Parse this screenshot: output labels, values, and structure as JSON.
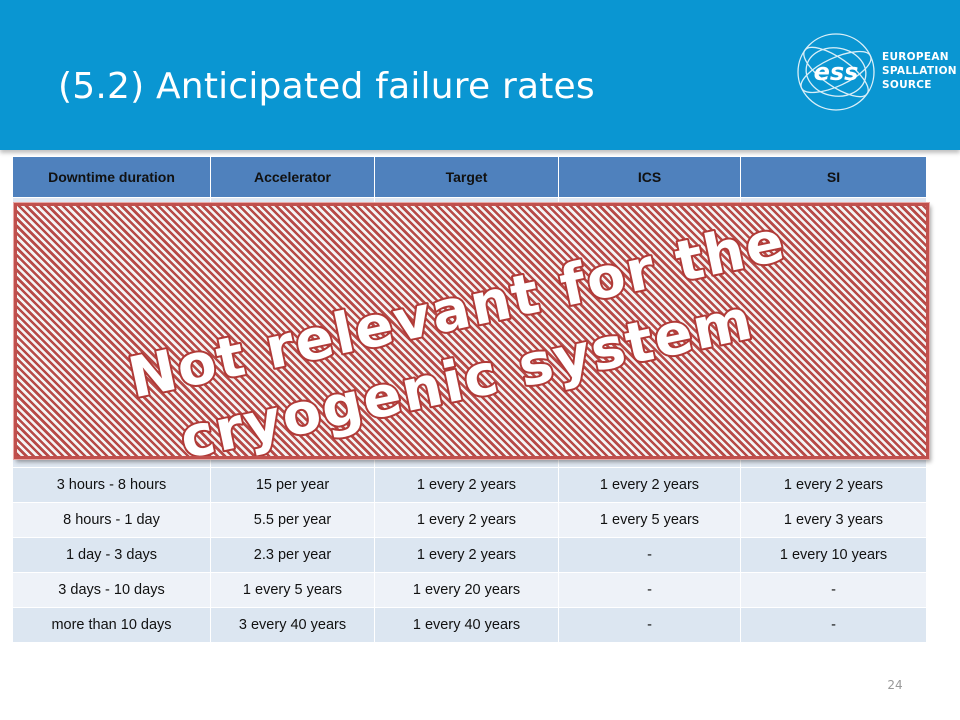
{
  "slide": {
    "title": "(5.2) Anticipated failure rates",
    "page_number": "24"
  },
  "logo": {
    "mark": "ess",
    "lines": [
      "EUROPEAN",
      "SPALLATION",
      "SOURCE"
    ]
  },
  "overlay": {
    "line1": "Not relevant for the",
    "line2": "cryogenic system",
    "stripe_color": "#b74a47",
    "text_color": "#ffffff",
    "outline_color": "#b03a37"
  },
  "table": {
    "headers": [
      "Downtime duration",
      "Accelerator",
      "Target",
      "ICS",
      "SI"
    ],
    "rows": [
      [
        "3 hours - 8 hours",
        "15 per year",
        "1 every 2 years",
        "1 every 2 years",
        "1 every 2 years"
      ],
      [
        "8 hours - 1 day",
        "5.5 per year",
        "1 every 2 years",
        "1 every 5 years",
        "1 every 3 years"
      ],
      [
        "1 day - 3 days",
        "2.3 per year",
        "1 every 2 years",
        "-",
        "1 every 10 years"
      ],
      [
        "3 days - 10 days",
        "1 every 5 years",
        "1 every 20 years",
        "-",
        "-"
      ],
      [
        "more than 10 days",
        "3 every 40 years",
        "1 every 40 years",
        "-",
        "-"
      ]
    ]
  },
  "colors": {
    "header_band": "#0a96d2",
    "table_header": "#4f81bd",
    "row_dark": "#dce6f1",
    "row_light": "#eef2f8"
  }
}
